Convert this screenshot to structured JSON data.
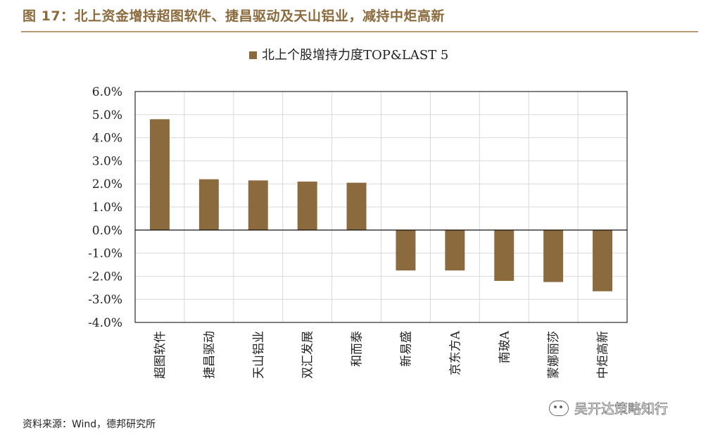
{
  "header": {
    "figure_title": "图 17：北上资金增持超图软件、捷昌驱动及天山铝业，减持中炬高新"
  },
  "footer": {
    "source": "资料来源：Wind，德邦研究所",
    "watermark": "吴开达策略知行"
  },
  "colors": {
    "bar": "#8b6a3e",
    "title": "#8b6a3e",
    "grid": "#d9d9d9",
    "axis": "#000000"
  },
  "chart_data": {
    "type": "bar",
    "legend": "北上个股增持力度TOP&LAST 5",
    "legend_position": "top-center",
    "categories": [
      "超图软件",
      "捷昌驱动",
      "天山铝业",
      "双汇发展",
      "和而泰",
      "新易盛",
      "京东方A",
      "南玻A",
      "蒙娜丽莎",
      "中炬高新"
    ],
    "values": [
      4.8,
      2.2,
      2.15,
      2.1,
      2.05,
      -1.75,
      -1.75,
      -2.2,
      -2.25,
      -2.65
    ],
    "value_unit": "%",
    "ylim": [
      -4.0,
      6.0
    ],
    "yticks": [
      "6.0%",
      "5.0%",
      "4.0%",
      "3.0%",
      "2.0%",
      "1.0%",
      "0.0%",
      "-1.0%",
      "-2.0%",
      "-3.0%",
      "-4.0%"
    ],
    "grid": true,
    "xlabel": "",
    "ylabel": ""
  }
}
